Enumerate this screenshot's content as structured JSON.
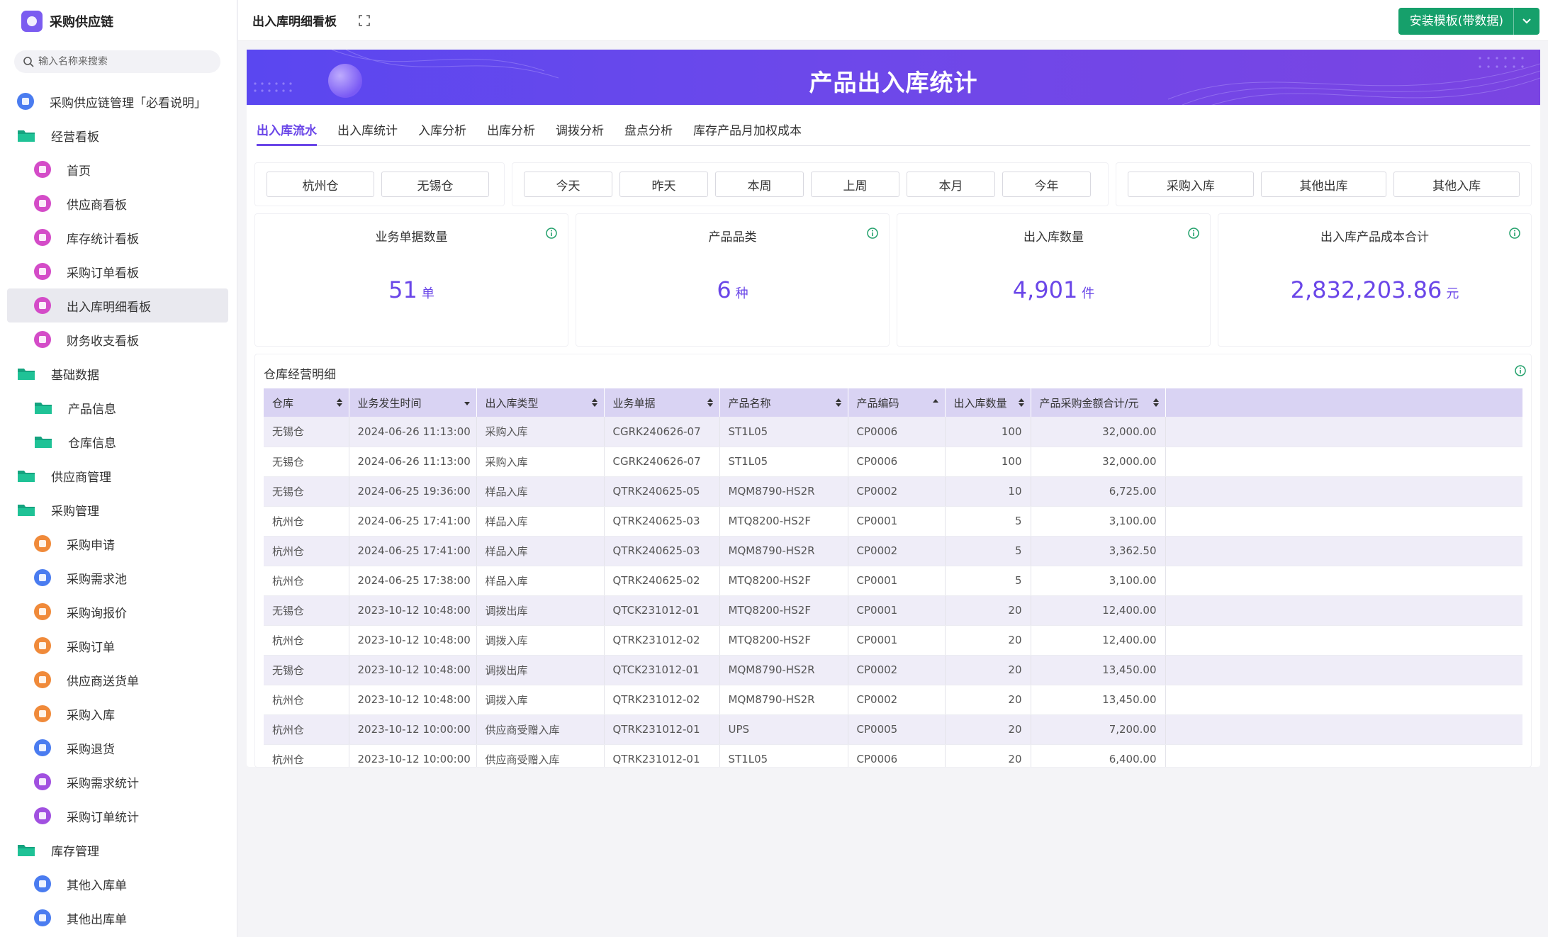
{
  "app": {
    "name": "采购供应链"
  },
  "search": {
    "placeholder": "输入名称来搜索"
  },
  "sidebar": {
    "items": [
      {
        "label": "采购供应链管理「必看说明」"
      },
      {
        "label": "经营看板"
      },
      {
        "label": "首页"
      },
      {
        "label": "供应商看板"
      },
      {
        "label": "库存统计看板"
      },
      {
        "label": "采购订单看板"
      },
      {
        "label": "出入库明细看板"
      },
      {
        "label": "财务收支看板"
      },
      {
        "label": "基础数据"
      },
      {
        "label": "产品信息"
      },
      {
        "label": "仓库信息"
      },
      {
        "label": "供应商管理"
      },
      {
        "label": "采购管理"
      },
      {
        "label": "采购申请"
      },
      {
        "label": "采购需求池"
      },
      {
        "label": "采购询报价"
      },
      {
        "label": "采购订单"
      },
      {
        "label": "供应商送货单"
      },
      {
        "label": "采购入库"
      },
      {
        "label": "采购退货"
      },
      {
        "label": "采购需求统计"
      },
      {
        "label": "采购订单统计"
      },
      {
        "label": "库存管理"
      },
      {
        "label": "其他入库单"
      },
      {
        "label": "其他出库单"
      }
    ]
  },
  "header": {
    "title": "出入库明细看板",
    "install_label": "安装模板(带数据)"
  },
  "banner": {
    "title": "产品出入库统计"
  },
  "tabs": [
    {
      "label": "出入库流水"
    },
    {
      "label": "出入库统计"
    },
    {
      "label": "入库分析"
    },
    {
      "label": "出库分析"
    },
    {
      "label": "调拨分析"
    },
    {
      "label": "盘点分析"
    },
    {
      "label": "库存产品月加权成本"
    }
  ],
  "filters": {
    "warehouses": [
      "杭州仓",
      "无锡仓"
    ],
    "periods": [
      "今天",
      "昨天",
      "本周",
      "上周",
      "本月",
      "今年"
    ],
    "types": [
      "采购入库",
      "其他出库",
      "其他入库"
    ]
  },
  "kpis": [
    {
      "label": "业务单据数量",
      "value": "51",
      "unit": "单"
    },
    {
      "label": "产品品类",
      "value": "6",
      "unit": "种"
    },
    {
      "label": "出入库数量",
      "value": "4,901",
      "unit": "件"
    },
    {
      "label": "出入库产品成本合计",
      "value": "2,832,203.86",
      "unit": "元"
    }
  ],
  "detail": {
    "title": "仓库经营明细",
    "columns": [
      "仓库",
      "业务发生时间",
      "出入库类型",
      "业务单据",
      "产品名称",
      "产品编码",
      "出入库数量",
      "产品采购金额合计/元"
    ],
    "rows": [
      [
        "无锡仓",
        "2024-06-26 11:13:00",
        "采购入库",
        "CGRK240626-07",
        "ST1L05",
        "CP0006",
        "100",
        "32,000.00"
      ],
      [
        "无锡仓",
        "2024-06-26 11:13:00",
        "采购入库",
        "CGRK240626-07",
        "ST1L05",
        "CP0006",
        "100",
        "32,000.00"
      ],
      [
        "无锡仓",
        "2024-06-25 19:36:00",
        "样品入库",
        "QTRK240625-05",
        "MQM8790-HS2R",
        "CP0002",
        "10",
        "6,725.00"
      ],
      [
        "杭州仓",
        "2024-06-25 17:41:00",
        "样品入库",
        "QTRK240625-03",
        "MTQ8200-HS2F",
        "CP0001",
        "5",
        "3,100.00"
      ],
      [
        "杭州仓",
        "2024-06-25 17:41:00",
        "样品入库",
        "QTRK240625-03",
        "MQM8790-HS2R",
        "CP0002",
        "5",
        "3,362.50"
      ],
      [
        "杭州仓",
        "2024-06-25 17:38:00",
        "样品入库",
        "QTRK240625-02",
        "MTQ8200-HS2F",
        "CP0001",
        "5",
        "3,100.00"
      ],
      [
        "无锡仓",
        "2023-10-12 10:48:00",
        "调拨出库",
        "QTCK231012-01",
        "MTQ8200-HS2F",
        "CP0001",
        "20",
        "12,400.00"
      ],
      [
        "杭州仓",
        "2023-10-12 10:48:00",
        "调拨入库",
        "QTRK231012-02",
        "MTQ8200-HS2F",
        "CP0001",
        "20",
        "12,400.00"
      ],
      [
        "无锡仓",
        "2023-10-12 10:48:00",
        "调拨出库",
        "QTCK231012-01",
        "MQM8790-HS2R",
        "CP0002",
        "20",
        "13,450.00"
      ],
      [
        "杭州仓",
        "2023-10-12 10:48:00",
        "调拨入库",
        "QTRK231012-02",
        "MQM8790-HS2R",
        "CP0002",
        "20",
        "13,450.00"
      ],
      [
        "杭州仓",
        "2023-10-12 10:00:00",
        "供应商受赠入库",
        "QTRK231012-01",
        "UPS",
        "CP0005",
        "20",
        "7,200.00"
      ],
      [
        "杭州仓",
        "2023-10-12 10:00:00",
        "供应商受赠入库",
        "QTRK231012-01",
        "ST1L05",
        "CP0006",
        "20",
        "6,400.00"
      ]
    ]
  },
  "colors": {
    "accent": "#6a46e8",
    "install_button": "#16a06b",
    "header_row": "#d9d3f3"
  }
}
